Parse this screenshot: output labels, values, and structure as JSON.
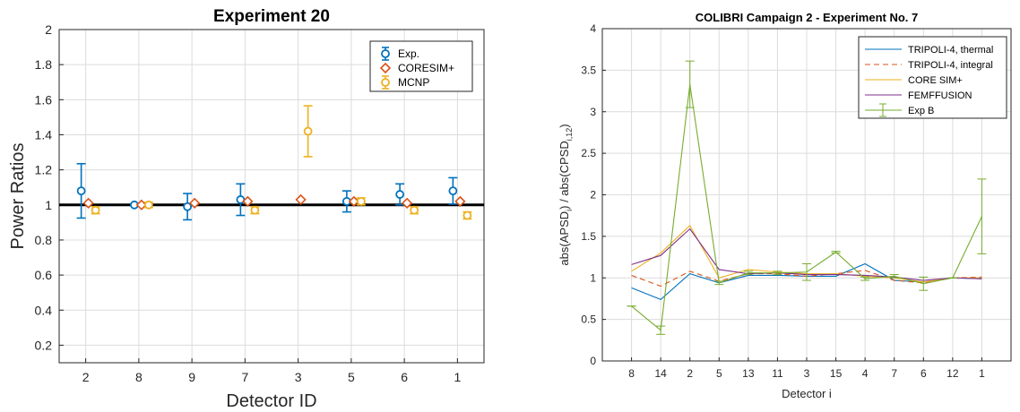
{
  "chart_data": [
    {
      "type": "scatter",
      "title": "Experiment 20",
      "xlabel": "Detector ID",
      "ylabel": "Power Ratios",
      "categories": [
        "2",
        "8",
        "9",
        "7",
        "3",
        "5",
        "6",
        "1"
      ],
      "ylim": [
        0.1,
        2
      ],
      "yticks": [
        "0.2",
        "0.4",
        "0.6",
        "0.8",
        "1",
        "1.2",
        "1.4",
        "1.6",
        "1.8",
        "2"
      ],
      "reference_line": 1,
      "legend_position": "top-right",
      "series": [
        {
          "name": "Exp.",
          "color": "#0072BD",
          "marker": "circle",
          "values": [
            1.08,
            1.0,
            0.99,
            1.03,
            null,
            1.02,
            1.06,
            1.08
          ],
          "err": [
            0.155,
            0.0,
            0.075,
            0.09,
            null,
            0.06,
            0.06,
            0.075
          ]
        },
        {
          "name": "CORESIM+",
          "color": "#D95319",
          "marker": "diamond",
          "values": [
            1.01,
            1.0,
            1.01,
            1.02,
            1.03,
            1.02,
            1.01,
            1.02
          ],
          "err": null
        },
        {
          "name": "MCNP",
          "color": "#EDB120",
          "marker": "circle",
          "values": [
            0.97,
            1.0,
            null,
            0.97,
            1.42,
            1.02,
            0.97,
            0.94
          ],
          "err": [
            0.02,
            0.015,
            null,
            0.02,
            0.145,
            0.02,
            0.02,
            0.02
          ]
        }
      ]
    },
    {
      "type": "line",
      "title": "COLIBRI Campaign 2 - Experiment No. 7",
      "xlabel": "Detector i",
      "ylabel_parts": [
        "abs(APSD",
        "i",
        ") / abs(CPSD",
        "i,12",
        ")"
      ],
      "categories": [
        "8",
        "14",
        "2",
        "5",
        "13",
        "11",
        "3",
        "15",
        "4",
        "7",
        "6",
        "12",
        "1"
      ],
      "ylim": [
        0,
        4
      ],
      "yticks": [
        "0",
        "0.5",
        "1",
        "1.5",
        "2",
        "2.5",
        "3",
        "3.5",
        "4"
      ],
      "legend_position": "top-right",
      "series": [
        {
          "name": "TRIPOLI-4, thermal",
          "color": "#0072BD",
          "dash": "",
          "values": [
            0.88,
            0.74,
            1.05,
            0.94,
            1.03,
            1.03,
            1.02,
            1.02,
            1.17,
            0.97,
            0.95,
            1.0,
            0.99
          ]
        },
        {
          "name": "TRIPOLI-4, integral",
          "color": "#D95319",
          "dash": "6,4",
          "values": [
            1.03,
            0.9,
            1.08,
            0.96,
            1.05,
            1.05,
            1.02,
            1.05,
            1.09,
            0.97,
            0.94,
            1.0,
            1.01
          ]
        },
        {
          "name": "CORE SIM+",
          "color": "#EDB120",
          "dash": "",
          "values": [
            1.08,
            1.3,
            1.63,
            1.0,
            1.1,
            1.07,
            1.05,
            1.05,
            1.02,
            1.0,
            0.95,
            1.0,
            1.0
          ]
        },
        {
          "name": "FEMFFUSION",
          "color": "#7E2F8E",
          "dash": "",
          "values": [
            1.16,
            1.27,
            1.59,
            1.1,
            1.05,
            1.06,
            1.04,
            1.04,
            1.03,
            1.01,
            0.97,
            1.0,
            0.99
          ]
        },
        {
          "name": "Exp B",
          "color": "#77AC30",
          "dash": "",
          "values": [
            0.66,
            0.37,
            3.33,
            0.94,
            1.06,
            1.06,
            1.07,
            1.31,
            0.99,
            1.02,
            0.93,
            1.0,
            1.74
          ],
          "err": [
            0.0,
            0.05,
            0.28,
            0.02,
            0.02,
            0.02,
            0.1,
            0.01,
            0.02,
            0.02,
            0.08,
            0.0,
            0.45
          ]
        }
      ]
    }
  ]
}
